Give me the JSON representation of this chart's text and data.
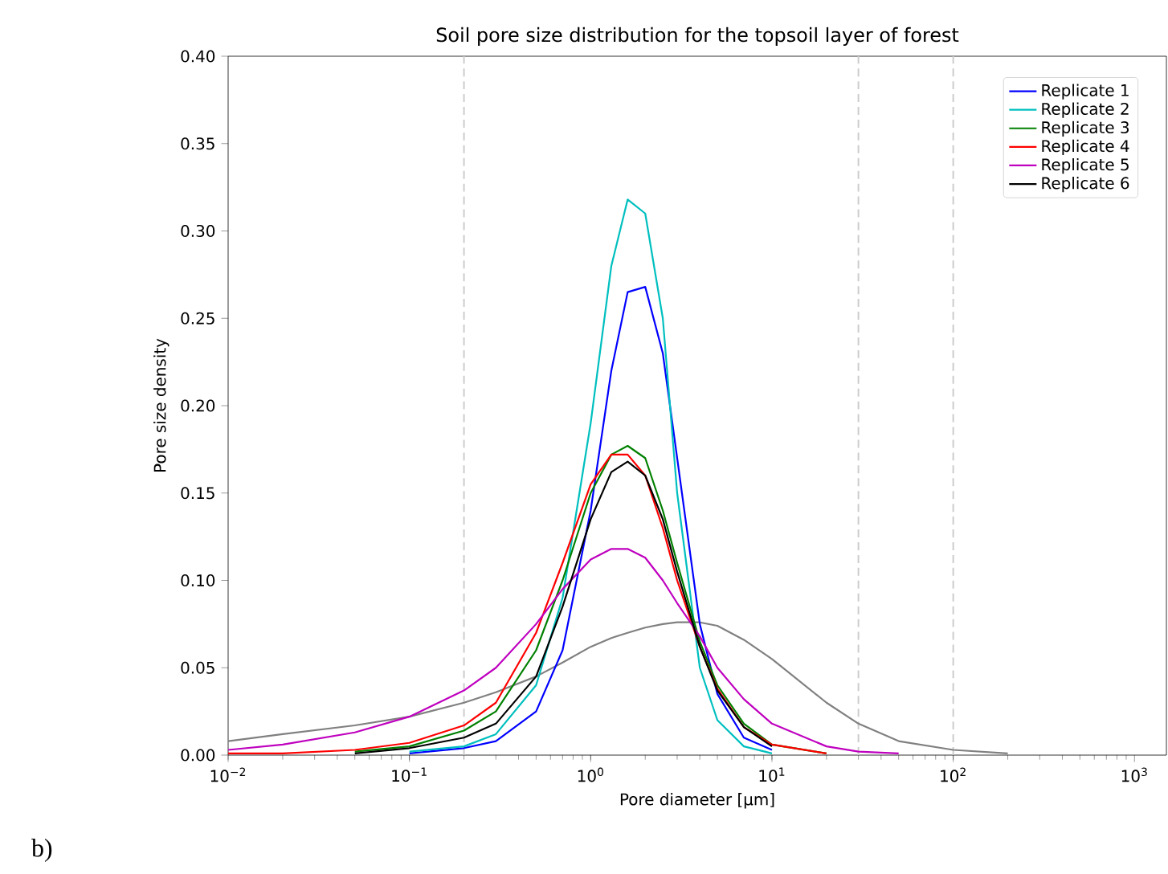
{
  "chart_data": {
    "type": "line",
    "title": "Soil pore size distribution for the topsoil layer of forest",
    "xlabel": "Pore diameter [µm]",
    "ylabel": "Pore size density",
    "log": "x",
    "x": [
      0.01,
      0.02,
      0.05,
      0.1,
      0.2,
      0.3,
      0.5,
      0.7,
      1,
      1.3,
      1.6,
      2,
      2.5,
      3,
      4,
      5,
      7,
      10,
      20,
      30,
      50,
      100,
      200
    ],
    "series": [
      {
        "color": "#808080",
        "values": [
          0.008,
          0.012,
          0.017,
          0.022,
          0.03,
          0.036,
          0.045,
          0.053,
          0.062,
          0.067,
          0.07,
          0.073,
          0.075,
          0.076,
          0.076,
          0.074,
          0.066,
          0.055,
          0.03,
          0.018,
          0.008,
          0.003,
          0.001
        ]
      },
      {
        "name": "Replicate 1",
        "color": "#0000ff",
        "values": [
          null,
          null,
          null,
          0.001,
          0.004,
          0.008,
          0.025,
          0.06,
          0.14,
          0.22,
          0.265,
          0.268,
          0.23,
          0.17,
          0.075,
          0.035,
          0.01,
          0.003,
          null,
          null,
          null,
          null,
          null
        ]
      },
      {
        "name": "Replicate 2",
        "color": "#00bfbf",
        "values": [
          null,
          null,
          null,
          0.002,
          0.005,
          0.012,
          0.04,
          0.09,
          0.19,
          0.28,
          0.318,
          0.31,
          0.25,
          0.15,
          0.05,
          0.02,
          0.005,
          0.001,
          null,
          null,
          null,
          null,
          null
        ]
      },
      {
        "name": "Replicate 3",
        "color": "#008000",
        "values": [
          null,
          null,
          0.002,
          0.005,
          0.014,
          0.025,
          0.06,
          0.1,
          0.15,
          0.172,
          0.177,
          0.17,
          0.14,
          0.11,
          0.065,
          0.04,
          0.018,
          0.006,
          0.001,
          null,
          null,
          null,
          null
        ]
      },
      {
        "name": "Replicate 4",
        "color": "#ff0000",
        "values": [
          0.001,
          0.001,
          0.003,
          0.007,
          0.017,
          0.03,
          0.07,
          0.11,
          0.155,
          0.172,
          0.172,
          0.16,
          0.13,
          0.1,
          0.062,
          0.038,
          0.016,
          0.006,
          0.001,
          null,
          null,
          null,
          null
        ]
      },
      {
        "name": "Replicate 5",
        "color": "#bf00bf",
        "values": [
          0.003,
          0.006,
          0.013,
          0.022,
          0.037,
          0.05,
          0.075,
          0.095,
          0.112,
          0.118,
          0.118,
          0.113,
          0.1,
          0.087,
          0.068,
          0.05,
          0.032,
          0.018,
          0.005,
          0.002,
          0.001,
          null,
          null
        ]
      },
      {
        "name": "Replicate 6",
        "color": "#000000",
        "values": [
          null,
          null,
          0.001,
          0.004,
          0.01,
          0.018,
          0.045,
          0.085,
          0.135,
          0.162,
          0.168,
          0.16,
          0.135,
          0.105,
          0.062,
          0.037,
          0.016,
          0.005,
          null,
          null,
          null,
          null,
          null
        ]
      }
    ],
    "xlim": [
      0.01,
      1500
    ],
    "ylim": [
      0,
      0.4
    ],
    "xticks": [
      {
        "value": 0.01,
        "label": "10$^{−2}$"
      },
      {
        "value": 0.1,
        "label": "10$^{−1}$"
      },
      {
        "value": 1,
        "label": "10$^{0}$"
      },
      {
        "value": 10,
        "label": "10$^{1}$"
      },
      {
        "value": 100,
        "label": "10$^{2}$"
      },
      {
        "value": 1000,
        "label": "10$^{3}$"
      }
    ],
    "yticks": [
      {
        "value": 0,
        "label": "0.00"
      },
      {
        "value": 0.05,
        "label": "0.05"
      },
      {
        "value": 0.1,
        "label": "0.10"
      },
      {
        "value": 0.15,
        "label": "0.15"
      },
      {
        "value": 0.2,
        "label": "0.20"
      },
      {
        "value": 0.25,
        "label": "0.25"
      },
      {
        "value": 0.3,
        "label": "0.30"
      },
      {
        "value": 0.35,
        "label": "0.35"
      },
      {
        "value": 0.4,
        "label": "0.40"
      }
    ],
    "ref_lines": [
      {
        "axis": "x",
        "value": 0.2,
        "color": "#cccccc",
        "line_style": "dashed"
      },
      {
        "axis": "x",
        "value": 30,
        "color": "#cccccc",
        "line_style": "dashed"
      },
      {
        "axis": "x",
        "value": 100,
        "color": "#cccccc",
        "line_style": "dashed"
      }
    ],
    "annotations": [
      "b)"
    ],
    "grid": false,
    "legend": "top right",
    "marker": "none",
    "line_style": "solid"
  }
}
